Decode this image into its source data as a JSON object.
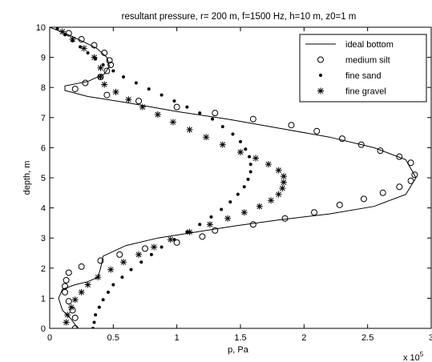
{
  "chart_data": {
    "type": "scatter",
    "title": "resultant pressure, r= 200 m, f=1500 Hz, h=10 m, z0=1 m",
    "xlabel": "p, Pa",
    "ylabel": "depth, m",
    "x_exponent_label": "x 10",
    "x_exponent_power": "5",
    "xlim": [
      0,
      3
    ],
    "ylim": [
      0,
      10
    ],
    "xticks": [
      0,
      0.5,
      1,
      1.5,
      2,
      2.5,
      3
    ],
    "yticks": [
      0,
      1,
      2,
      3,
      4,
      5,
      6,
      7,
      8,
      9,
      10
    ],
    "legend_position": "top-right",
    "grid": false,
    "series": [
      {
        "name": "ideal bottom",
        "style": "line",
        "x": [
          0,
          0.12,
          0.25,
          0.37,
          0.45,
          0.47,
          0.43,
          0.3,
          0.12,
          0.12,
          0.3,
          0.6,
          1.0,
          1.4,
          1.8,
          2.2,
          2.55,
          2.8,
          2.88,
          2.8,
          2.55,
          2.2,
          1.8,
          1.45,
          1.15,
          0.85,
          0.6,
          0.42,
          0.4,
          0.38,
          0.3,
          0.2,
          0.1,
          0.07,
          0.1,
          0.17,
          0.22
        ],
        "y": [
          10,
          9.8,
          9.55,
          9.3,
          9.0,
          8.7,
          8.45,
          8.2,
          8.05,
          7.9,
          7.7,
          7.5,
          7.2,
          6.95,
          6.65,
          6.35,
          6.0,
          5.6,
          5.0,
          4.45,
          4.05,
          3.8,
          3.6,
          3.4,
          3.2,
          3.0,
          2.75,
          2.4,
          2.0,
          1.7,
          1.55,
          1.45,
          1.3,
          1.0,
          0.6,
          0.3,
          0.0
        ]
      },
      {
        "name": "medium silt",
        "style": "circle",
        "x": [
          0.15,
          0.25,
          0.35,
          0.43,
          0.47,
          0.48,
          0.45,
          0.4,
          0.28,
          0.2,
          0.45,
          0.7,
          1.0,
          1.3,
          1.6,
          1.9,
          2.1,
          2.3,
          2.45,
          2.6,
          2.75,
          2.84,
          2.87,
          2.84,
          2.75,
          2.62,
          2.47,
          2.28,
          2.08,
          1.85,
          1.6,
          1.3,
          1.2,
          1.0,
          0.75,
          0.55,
          0.4,
          0.25,
          0.15,
          0.13,
          0.12,
          0.12,
          0.15,
          0.18,
          0.2,
          0.2
        ],
        "y": [
          9.8,
          9.6,
          9.4,
          9.15,
          8.9,
          8.75,
          8.55,
          8.35,
          8.15,
          7.95,
          7.75,
          7.55,
          7.35,
          7.15,
          6.95,
          6.75,
          6.55,
          6.3,
          6.1,
          5.9,
          5.7,
          5.5,
          5.1,
          4.9,
          4.7,
          4.5,
          4.3,
          4.1,
          3.85,
          3.65,
          3.45,
          3.25,
          3.05,
          2.85,
          2.65,
          2.45,
          2.25,
          2.05,
          1.85,
          1.6,
          1.4,
          1.2,
          0.9,
          0.6,
          0.35,
          0.0
        ]
      },
      {
        "name": "fine sand",
        "style": "dot",
        "x": [
          0.06,
          0.12,
          0.18,
          0.24,
          0.3,
          0.36,
          0.42,
          0.5,
          0.58,
          0.68,
          0.78,
          0.88,
          0.98,
          1.08,
          1.18,
          1.28,
          1.36,
          1.44,
          1.5,
          1.54,
          1.57,
          1.58,
          1.58,
          1.56,
          1.53,
          1.48,
          1.42,
          1.35,
          1.27,
          1.18,
          1.08,
          0.98,
          0.88,
          0.8,
          0.72,
          0.64,
          0.57,
          0.5,
          0.46,
          0.42,
          0.39,
          0.36,
          0.35,
          0.34
        ],
        "y": [
          9.95,
          9.75,
          9.55,
          9.35,
          9.15,
          8.95,
          8.75,
          8.55,
          8.35,
          8.15,
          7.95,
          7.75,
          7.55,
          7.35,
          7.15,
          6.95,
          6.7,
          6.45,
          6.2,
          5.95,
          5.7,
          5.45,
          5.2,
          4.95,
          4.7,
          4.45,
          4.2,
          3.95,
          3.7,
          3.45,
          3.2,
          2.95,
          2.7,
          2.45,
          2.2,
          1.95,
          1.7,
          1.45,
          1.2,
          0.95,
          0.7,
          0.45,
          0.2,
          0.0
        ]
      },
      {
        "name": "fine gravel",
        "style": "star",
        "x": [
          0.1,
          0.18,
          0.27,
          0.35,
          0.4,
          0.4,
          0.43,
          0.52,
          0.62,
          0.73,
          0.85,
          0.97,
          1.1,
          1.23,
          1.36,
          1.5,
          1.62,
          1.72,
          1.8,
          1.84,
          1.84,
          1.83,
          1.8,
          1.74,
          1.65,
          1.53,
          1.4,
          1.26,
          1.1,
          0.95,
          0.82,
          0.7,
          0.58,
          0.48,
          0.38,
          0.3,
          0.25,
          0.2,
          0.17,
          0.14,
          0.13
        ],
        "y": [
          9.85,
          9.6,
          9.3,
          9.0,
          8.65,
          8.35,
          8.1,
          7.85,
          7.6,
          7.35,
          7.1,
          6.85,
          6.6,
          6.35,
          6.1,
          5.85,
          5.65,
          5.45,
          5.25,
          5.05,
          4.85,
          4.65,
          4.45,
          4.25,
          4.05,
          3.85,
          3.65,
          3.45,
          3.2,
          2.95,
          2.7,
          2.45,
          2.2,
          1.95,
          1.7,
          1.45,
          1.2,
          0.95,
          0.7,
          0.45,
          0.2
        ]
      }
    ]
  }
}
